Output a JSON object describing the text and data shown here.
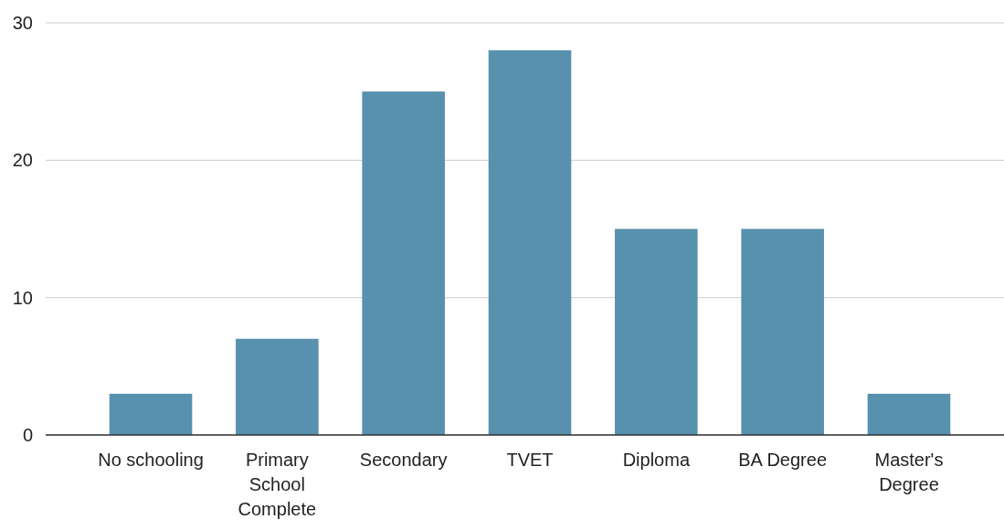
{
  "chart_data": {
    "type": "bar",
    "categories": [
      "No schooling",
      "Primary School Complete",
      "Secondary",
      "TVET",
      "Diploma",
      "BA Degree",
      "Master's Degree"
    ],
    "values": [
      3,
      7,
      25,
      28,
      15,
      15,
      3
    ],
    "color": "#5891ae",
    "ylim": [
      0,
      30
    ],
    "yticks": [
      0,
      10,
      20,
      30
    ],
    "grid": "y"
  }
}
